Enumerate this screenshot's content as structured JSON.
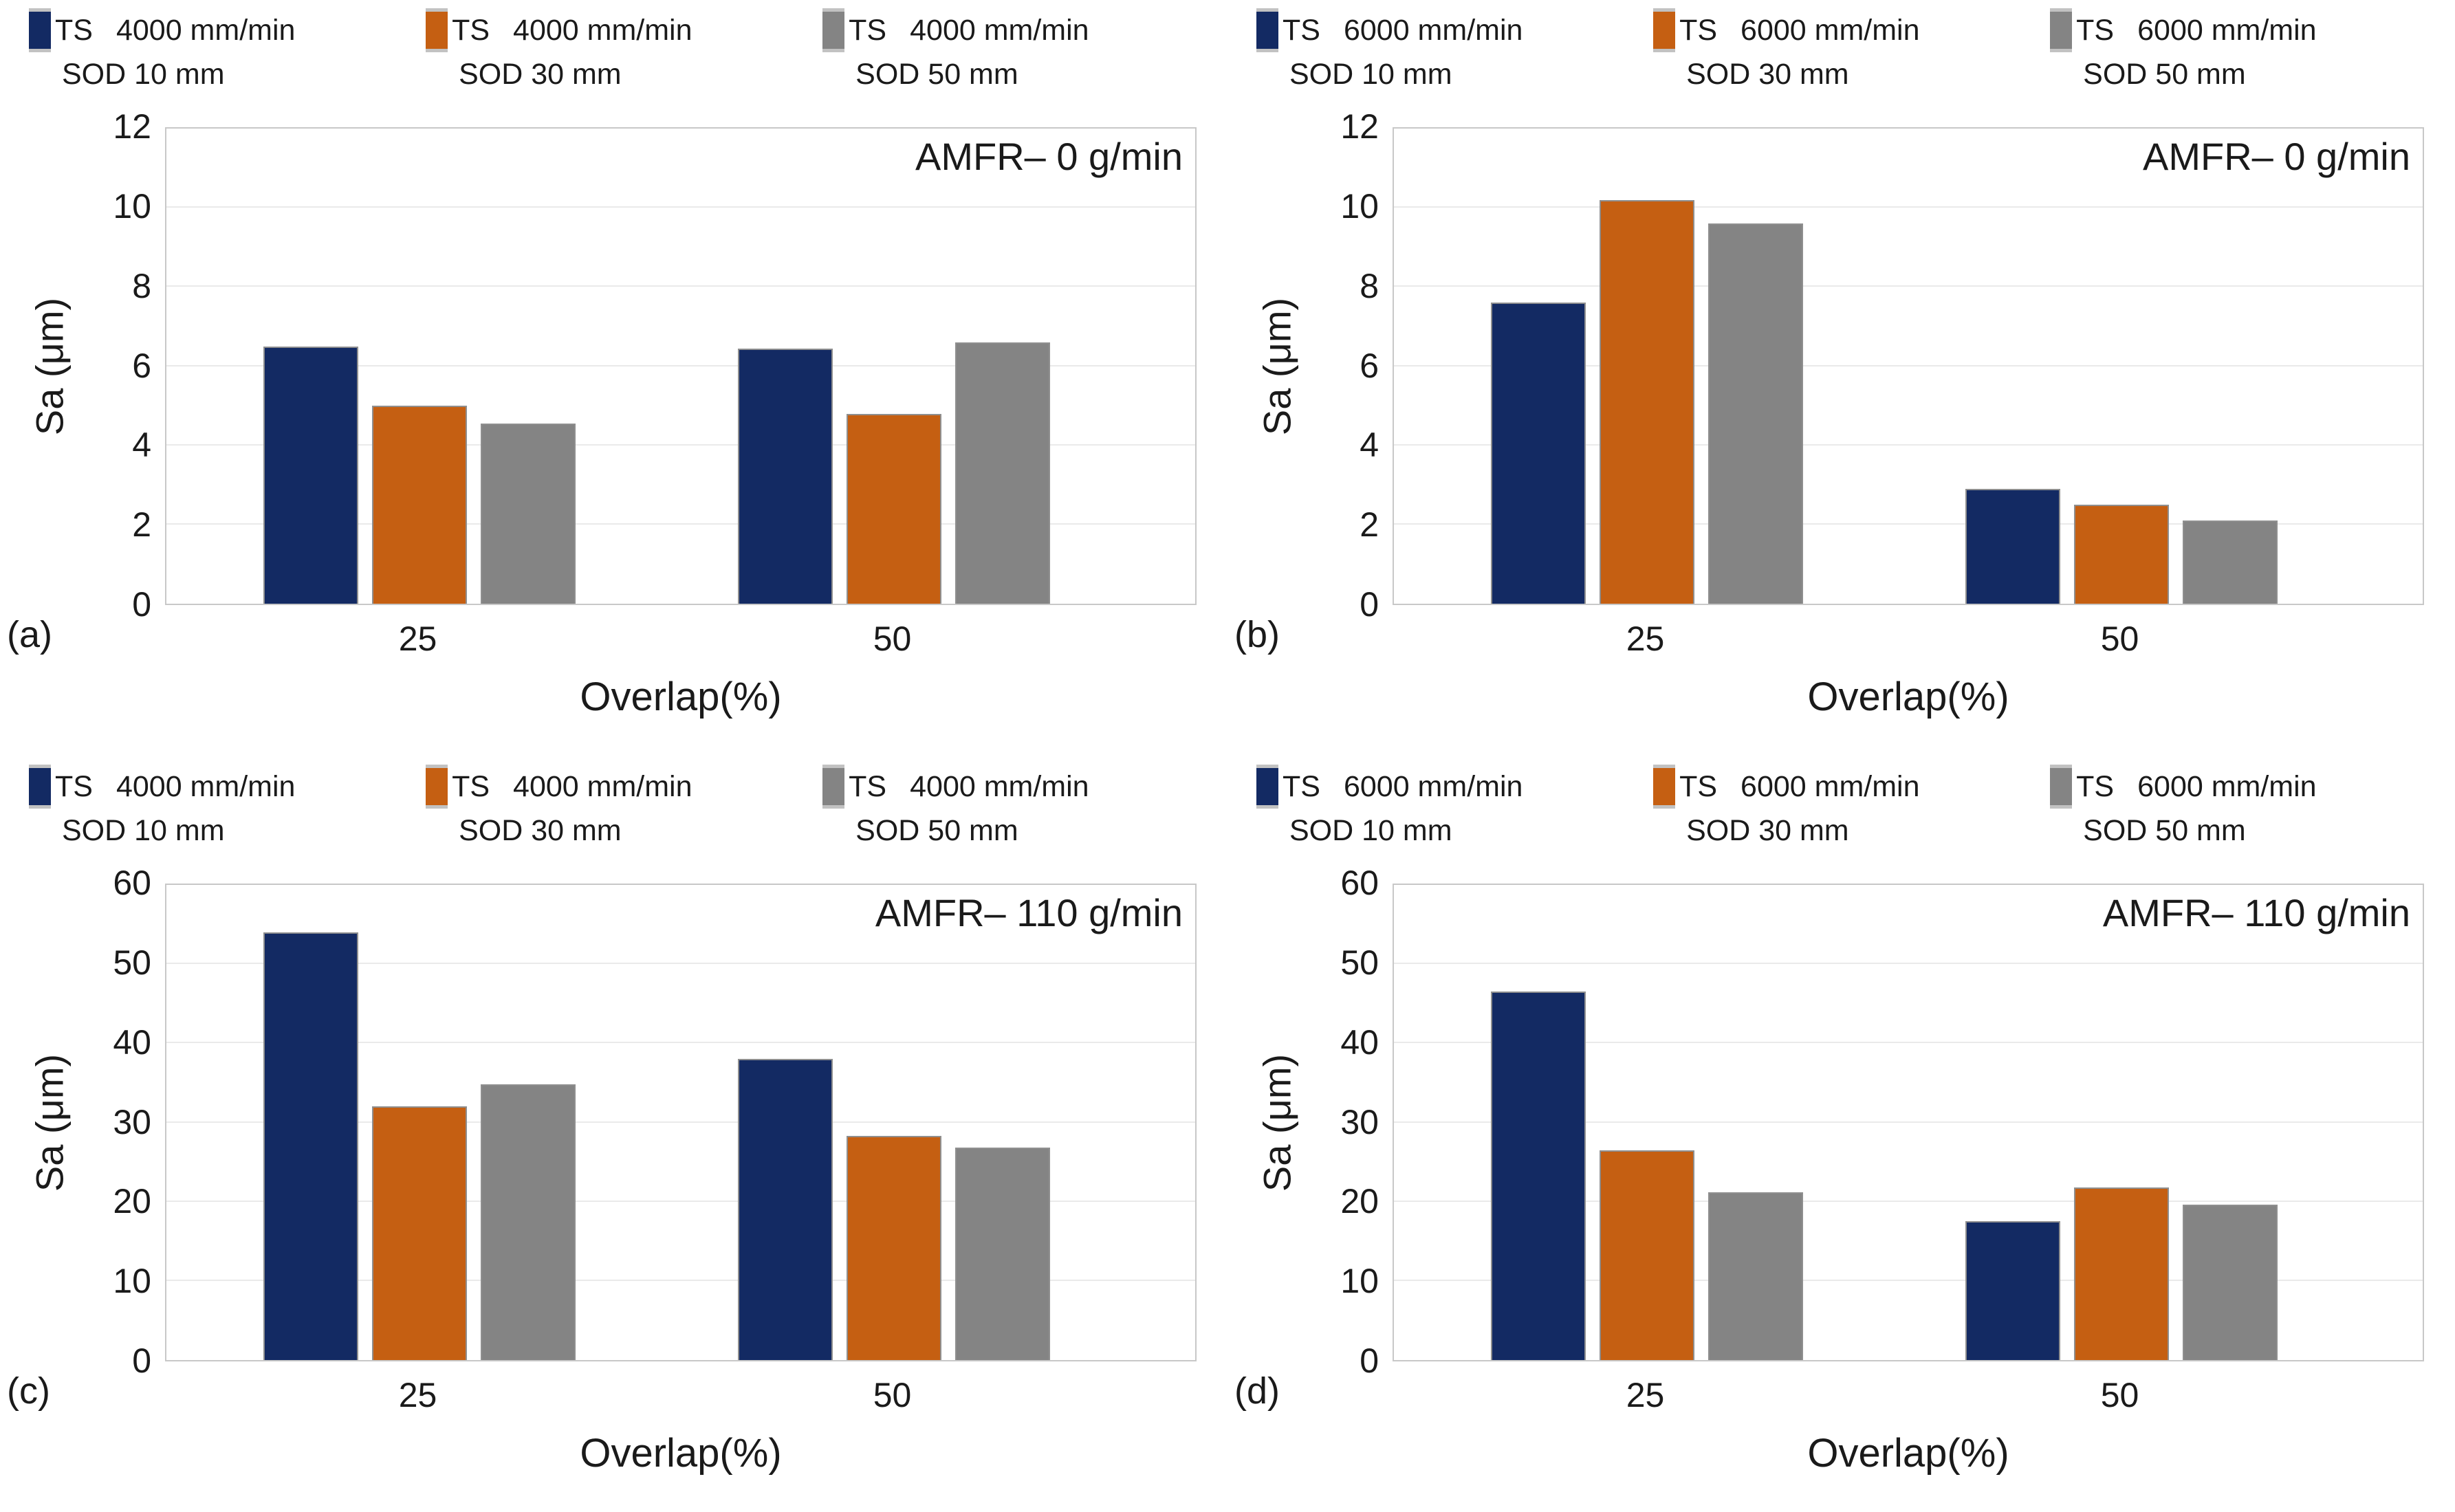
{
  "figure": {
    "background": "#ffffff"
  },
  "colors": {
    "navy": "#132a63",
    "orange": "#c55f12",
    "gray": "#848484",
    "gridline": "#eaeaea",
    "plot_border": "#c8c8c8",
    "text": "#1a1a1a"
  },
  "chart_data": [
    {
      "id": "a",
      "type": "bar",
      "letter": "(a)",
      "annotation": "AMFR– 0 g/min",
      "xlabel": "Overlap(%)",
      "ylabel": "Sa (μm)",
      "ylim": [
        0,
        12
      ],
      "ystep": 2,
      "grid": true,
      "legend_position": "top",
      "categories": [
        "25",
        "50"
      ],
      "legend": [
        {
          "ts": "TS",
          "speed": "4000 mm/min",
          "sod": "SOD 10 mm"
        },
        {
          "ts": "TS",
          "speed": "4000 mm/min",
          "sod": "SOD 30 mm"
        },
        {
          "ts": "TS",
          "speed": "4000 mm/min",
          "sod": "SOD 50 mm"
        }
      ],
      "series": [
        {
          "name": "SOD 10 mm",
          "color": "#132a63",
          "values": [
            6.5,
            6.45
          ]
        },
        {
          "name": "SOD 30 mm",
          "color": "#c55f12",
          "values": [
            5.0,
            4.8
          ]
        },
        {
          "name": "SOD 50 mm",
          "color": "#848484",
          "values": [
            4.55,
            6.6
          ]
        }
      ]
    },
    {
      "id": "b",
      "type": "bar",
      "letter": "(b)",
      "annotation": "AMFR– 0 g/min",
      "xlabel": "Overlap(%)",
      "ylabel": "Sa (μm)",
      "ylim": [
        0,
        12
      ],
      "ystep": 2,
      "grid": true,
      "legend_position": "top",
      "categories": [
        "25",
        "50"
      ],
      "legend": [
        {
          "ts": "TS",
          "speed": "6000 mm/min",
          "sod": "SOD 10 mm"
        },
        {
          "ts": "TS",
          "speed": "6000 mm/min",
          "sod": "SOD 30 mm"
        },
        {
          "ts": "TS",
          "speed": "6000 mm/min",
          "sod": "SOD 50 mm"
        }
      ],
      "series": [
        {
          "name": "SOD 10 mm",
          "color": "#132a63",
          "values": [
            7.6,
            2.9
          ]
        },
        {
          "name": "SOD 30 mm",
          "color": "#c55f12",
          "values": [
            10.2,
            2.5
          ]
        },
        {
          "name": "SOD 50 mm",
          "color": "#848484",
          "values": [
            9.6,
            2.1
          ]
        }
      ]
    },
    {
      "id": "c",
      "type": "bar",
      "letter": "(c)",
      "annotation": "AMFR– 110 g/min",
      "xlabel": "Overlap(%)",
      "ylabel": "Sa (μm)",
      "ylim": [
        0,
        60
      ],
      "ystep": 10,
      "grid": true,
      "legend_position": "top",
      "categories": [
        "25",
        "50"
      ],
      "legend": [
        {
          "ts": "TS",
          "speed": "4000 mm/min",
          "sod": "SOD 10 mm"
        },
        {
          "ts": "TS",
          "speed": "4000 mm/min",
          "sod": "SOD 30 mm"
        },
        {
          "ts": "TS",
          "speed": "4000 mm/min",
          "sod": "SOD 50 mm"
        }
      ],
      "series": [
        {
          "name": "SOD 10 mm",
          "color": "#132a63",
          "values": [
            54.0,
            38.0
          ]
        },
        {
          "name": "SOD 30 mm",
          "color": "#c55f12",
          "values": [
            32.0,
            28.3
          ]
        },
        {
          "name": "SOD 50 mm",
          "color": "#848484",
          "values": [
            34.8,
            26.8
          ]
        }
      ]
    },
    {
      "id": "d",
      "type": "bar",
      "letter": "(d)",
      "annotation": "AMFR– 110 g/min",
      "xlabel": "Overlap(%)",
      "ylabel": "Sa (μm)",
      "ylim": [
        0,
        60
      ],
      "ystep": 10,
      "grid": true,
      "legend_position": "top",
      "categories": [
        "25",
        "50"
      ],
      "legend": [
        {
          "ts": "TS",
          "speed": "6000 mm/min",
          "sod": "SOD 10 mm"
        },
        {
          "ts": "TS",
          "speed": "6000 mm/min",
          "sod": "SOD 30 mm"
        },
        {
          "ts": "TS",
          "speed": "6000 mm/min",
          "sod": "SOD 50 mm"
        }
      ],
      "series": [
        {
          "name": "SOD 10 mm",
          "color": "#132a63",
          "values": [
            46.5,
            17.5
          ]
        },
        {
          "name": "SOD 30 mm",
          "color": "#c55f12",
          "values": [
            26.5,
            21.8
          ]
        },
        {
          "name": "SOD 50 mm",
          "color": "#848484",
          "values": [
            21.2,
            19.6
          ]
        }
      ]
    }
  ]
}
